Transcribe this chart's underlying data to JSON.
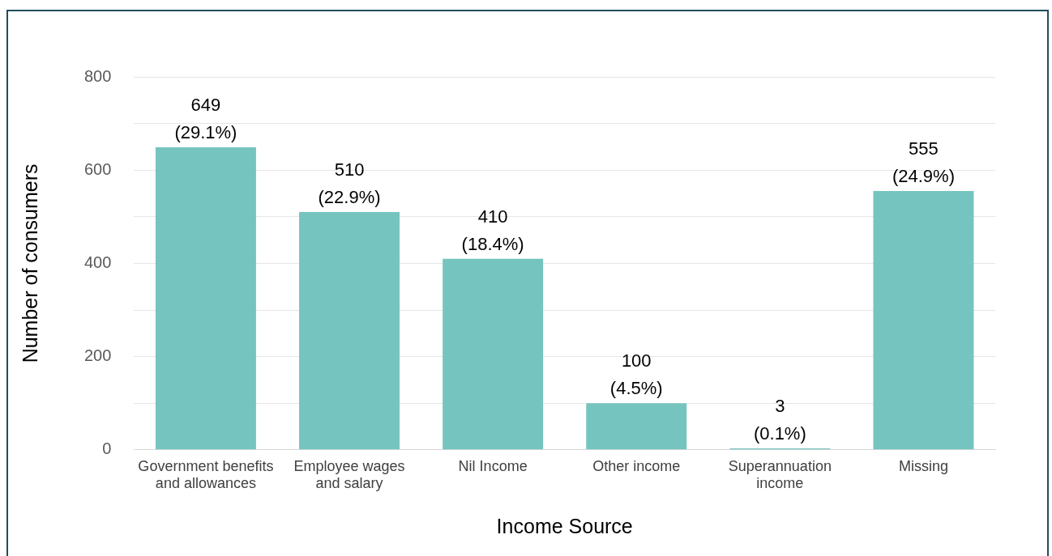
{
  "chart_data": {
    "type": "bar",
    "xlabel": "Income Source",
    "ylabel": "Number of consumers",
    "categories": [
      "Government benefits and allowances",
      "Employee wages and salary",
      "Nil Income",
      "Other income",
      "Superannuation income",
      "Missing"
    ],
    "values": [
      649,
      510,
      410,
      100,
      3,
      555
    ],
    "value_labels": [
      "649 (29.1%)",
      "510 (22.9%)",
      "410 (18.4%)",
      "100 (4.5%)",
      "3 (0.1%)",
      "555 (24.9%)"
    ],
    "color": "#76c4bf",
    "ylim": [
      0,
      800
    ],
    "yticks": [
      0,
      {
        "value": 100,
        "label": null
      },
      200,
      {
        "value": 300,
        "label": null
      },
      400,
      {
        "value": 500,
        "label": null
      },
      600,
      {
        "value": 700,
        "label": null
      },
      800
    ],
    "grid": "y",
    "legend": false
  }
}
